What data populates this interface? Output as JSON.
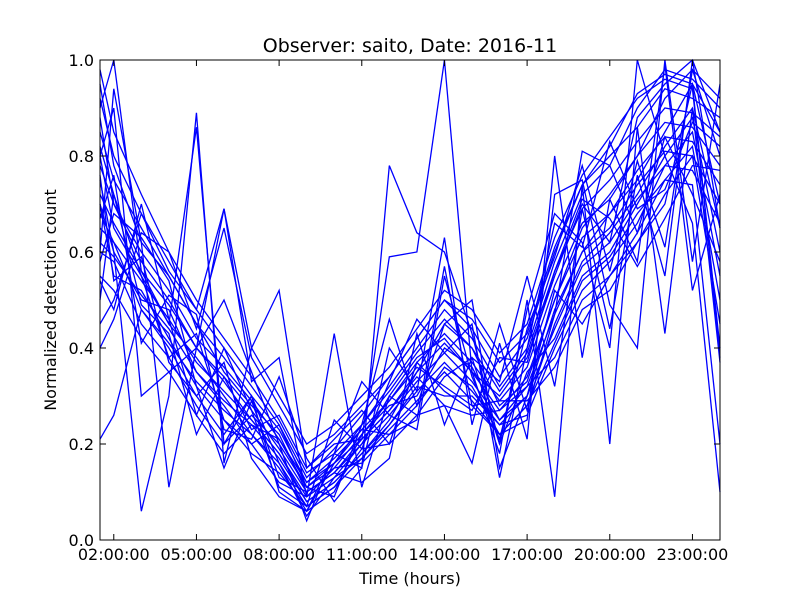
{
  "chart_data": {
    "type": "line",
    "title": "Observer: saito, Date: 2016-11",
    "xlabel": "Time (hours)",
    "ylabel": "Normalized detection count",
    "xlim": [
      1.5,
      24
    ],
    "ylim": [
      0,
      1
    ],
    "xticks": [
      {
        "value": 2,
        "label": "02:00:00"
      },
      {
        "value": 5,
        "label": "05:00:00"
      },
      {
        "value": 8,
        "label": "08:00:00"
      },
      {
        "value": 11,
        "label": "11:00:00"
      },
      {
        "value": 14,
        "label": "14:00:00"
      },
      {
        "value": 17,
        "label": "17:00:00"
      },
      {
        "value": 20,
        "label": "20:00:00"
      },
      {
        "value": 23,
        "label": "23:00:00"
      }
    ],
    "yticks": [
      {
        "value": 0,
        "label": "0.0"
      },
      {
        "value": 0.2,
        "label": "0.2"
      },
      {
        "value": 0.4,
        "label": "0.4"
      },
      {
        "value": 0.6,
        "label": "0.6"
      },
      {
        "value": 0.8,
        "label": "0.8"
      },
      {
        "value": 1.0,
        "label": "1.0"
      }
    ],
    "line_color": "#0000ff",
    "grid": false,
    "legend": "none",
    "x": [
      1.5,
      2,
      3,
      4,
      5,
      6,
      7,
      8,
      9,
      10,
      11,
      12,
      13,
      14,
      15,
      16,
      17,
      18,
      19,
      20,
      21,
      22,
      23,
      24
    ],
    "series": [
      {
        "values": [
          0.95,
          0.78,
          0.62,
          0.55,
          0.45,
          0.35,
          0.28,
          0.22,
          0.1,
          0.14,
          0.2,
          0.3,
          0.38,
          0.42,
          0.35,
          0.3,
          0.38,
          0.55,
          0.7,
          0.62,
          0.88,
          0.95,
          1.0,
          0.85
        ]
      },
      {
        "values": [
          0.88,
          0.7,
          0.58,
          0.5,
          0.4,
          0.33,
          0.25,
          0.18,
          0.08,
          0.12,
          0.18,
          0.25,
          0.35,
          0.45,
          0.4,
          0.28,
          0.33,
          0.5,
          0.65,
          0.72,
          0.8,
          0.92,
          0.98,
          0.8
        ]
      },
      {
        "values": [
          0.8,
          0.65,
          0.55,
          0.45,
          0.38,
          0.3,
          0.22,
          0.15,
          0.06,
          0.1,
          0.22,
          0.28,
          0.3,
          0.4,
          0.36,
          0.25,
          0.3,
          0.48,
          0.6,
          0.68,
          0.75,
          0.85,
          0.95,
          0.7
        ]
      },
      {
        "values": [
          0.75,
          0.6,
          0.5,
          0.48,
          0.35,
          0.28,
          0.2,
          0.12,
          0.09,
          0.15,
          0.16,
          0.22,
          0.28,
          0.36,
          0.32,
          0.22,
          0.28,
          0.45,
          0.58,
          0.64,
          0.72,
          0.82,
          0.9,
          0.65
        ]
      },
      {
        "values": [
          0.7,
          0.55,
          0.52,
          0.42,
          0.32,
          0.25,
          0.18,
          0.14,
          0.07,
          0.11,
          0.19,
          0.2,
          0.26,
          0.34,
          0.38,
          0.2,
          0.35,
          0.42,
          0.55,
          0.6,
          0.7,
          0.8,
          0.88,
          0.6
        ]
      },
      {
        "values": [
          0.65,
          0.62,
          0.48,
          0.4,
          0.3,
          0.22,
          0.3,
          0.16,
          0.05,
          0.13,
          0.17,
          0.24,
          0.32,
          0.3,
          0.3,
          0.24,
          0.26,
          0.4,
          0.52,
          0.58,
          0.66,
          0.78,
          0.85,
          0.55
        ]
      },
      {
        "values": [
          0.6,
          0.58,
          0.45,
          0.38,
          0.28,
          0.2,
          0.26,
          0.2,
          0.11,
          0.16,
          0.21,
          0.27,
          0.34,
          0.28,
          0.26,
          0.27,
          0.32,
          0.38,
          0.5,
          0.55,
          0.64,
          0.75,
          0.82,
          0.5
        ]
      },
      {
        "values": [
          0.55,
          0.52,
          0.42,
          0.35,
          0.26,
          0.18,
          0.24,
          0.21,
          0.12,
          0.17,
          0.23,
          0.29,
          0.36,
          0.32,
          0.28,
          0.29,
          0.29,
          0.36,
          0.48,
          0.52,
          0.62,
          0.72,
          0.8,
          0.45
        ]
      },
      {
        "values": [
          0.98,
          0.85,
          0.72,
          0.6,
          0.5,
          0.42,
          0.34,
          0.25,
          0.14,
          0.18,
          0.24,
          0.32,
          0.4,
          0.48,
          0.42,
          0.32,
          0.4,
          0.58,
          0.72,
          0.78,
          0.9,
          0.98,
          0.96,
          0.9
        ]
      },
      {
        "values": [
          0.92,
          0.8,
          0.68,
          0.58,
          0.48,
          0.4,
          0.32,
          0.24,
          0.13,
          0.19,
          0.26,
          0.34,
          0.42,
          0.5,
          0.44,
          0.34,
          0.42,
          0.6,
          0.74,
          0.8,
          0.86,
          0.94,
          0.92,
          0.88
        ]
      },
      {
        "values": [
          0.85,
          0.75,
          0.65,
          0.55,
          0.45,
          0.38,
          0.3,
          0.23,
          0.12,
          0.16,
          0.24,
          0.31,
          0.39,
          0.46,
          0.4,
          0.31,
          0.39,
          0.56,
          0.69,
          0.75,
          0.83,
          0.9,
          0.89,
          0.84
        ]
      },
      {
        "values": [
          0.78,
          0.7,
          0.6,
          0.52,
          0.42,
          0.36,
          0.29,
          0.21,
          0.11,
          0.15,
          0.22,
          0.29,
          0.37,
          0.43,
          0.37,
          0.29,
          0.36,
          0.53,
          0.66,
          0.71,
          0.8,
          0.87,
          0.86,
          0.78
        ]
      },
      {
        "values": [
          0.72,
          0.66,
          0.56,
          0.49,
          0.4,
          0.34,
          0.27,
          0.19,
          0.1,
          0.14,
          0.21,
          0.27,
          0.35,
          0.41,
          0.35,
          0.27,
          0.34,
          0.5,
          0.63,
          0.68,
          0.77,
          0.84,
          0.83,
          0.74
        ]
      },
      {
        "values": [
          0.68,
          0.62,
          0.54,
          0.46,
          0.37,
          0.31,
          0.25,
          0.18,
          0.09,
          0.13,
          0.2,
          0.26,
          0.33,
          0.39,
          0.33,
          0.25,
          0.32,
          0.47,
          0.6,
          0.65,
          0.74,
          0.81,
          0.8,
          0.7
        ]
      },
      {
        "values": [
          0.62,
          0.59,
          0.51,
          0.44,
          0.35,
          0.29,
          0.24,
          0.17,
          0.08,
          0.12,
          0.18,
          0.24,
          0.31,
          0.37,
          0.31,
          0.24,
          0.3,
          0.44,
          0.57,
          0.62,
          0.71,
          0.78,
          0.77,
          0.66
        ]
      },
      {
        "values": [
          0.21,
          0.26,
          0.48,
          0.41,
          0.33,
          0.27,
          0.22,
          0.16,
          0.07,
          0.11,
          0.17,
          0.23,
          0.29,
          0.35,
          0.29,
          0.22,
          0.28,
          0.41,
          0.54,
          0.59,
          0.68,
          0.75,
          0.74,
          0.2
        ]
      },
      {
        "values": [
          0.45,
          0.5,
          0.68,
          0.56,
          0.48,
          0.69,
          0.4,
          0.3,
          0.2,
          0.24,
          0.3,
          0.36,
          0.44,
          0.52,
          0.48,
          0.39,
          0.45,
          0.63,
          0.76,
          0.84,
          0.92,
          0.96,
          0.94,
          0.4
        ]
      },
      {
        "values": [
          0.4,
          0.46,
          0.64,
          0.6,
          0.44,
          0.65,
          0.38,
          0.28,
          0.18,
          0.22,
          0.28,
          0.34,
          0.42,
          0.5,
          0.46,
          0.37,
          0.43,
          0.61,
          0.74,
          0.82,
          0.93,
          0.97,
          0.95,
          0.38
        ]
      },
      {
        "values": [
          0.8,
          0.9,
          0.3,
          0.35,
          0.4,
          0.5,
          0.35,
          0.2,
          0.04,
          0.18,
          0.15,
          0.78,
          0.64,
          0.6,
          0.43,
          0.2,
          0.48,
          0.68,
          0.62,
          0.4,
          1.0,
          0.8,
          0.66,
          0.1
        ]
      },
      {
        "values": [
          0.7,
          0.6,
          0.06,
          0.3,
          0.89,
          0.16,
          0.4,
          0.52,
          0.15,
          0.2,
          0.21,
          0.59,
          0.6,
          1.0,
          0.35,
          0.18,
          0.5,
          0.09,
          0.74,
          0.2,
          0.86,
          0.43,
          0.9,
          0.37
        ]
      },
      {
        "values": [
          0.9,
          1.0,
          0.56,
          0.45,
          0.86,
          0.2,
          0.3,
          0.1,
          0.06,
          0.16,
          0.23,
          0.22,
          0.25,
          0.57,
          0.28,
          0.22,
          0.25,
          0.72,
          0.75,
          0.49,
          0.4,
          1.0,
          0.58,
          0.95
        ]
      },
      {
        "values": [
          0.6,
          0.94,
          0.62,
          0.11,
          0.4,
          0.69,
          0.33,
          0.38,
          0.09,
          0.43,
          0.11,
          0.3,
          0.26,
          0.28,
          0.16,
          0.41,
          0.21,
          0.8,
          0.38,
          0.71,
          0.58,
          0.99,
          0.52,
          0.72
        ]
      },
      {
        "values": [
          0.82,
          0.72,
          0.55,
          0.38,
          0.43,
          0.25,
          0.2,
          0.24,
          0.11,
          0.09,
          0.24,
          0.46,
          0.28,
          0.45,
          0.5,
          0.15,
          0.3,
          0.52,
          0.45,
          0.55,
          0.62,
          0.7,
          0.95,
          0.85
        ]
      },
      {
        "values": [
          0.58,
          0.68,
          0.63,
          0.54,
          0.32,
          0.15,
          0.29,
          0.13,
          0.1,
          0.14,
          0.12,
          0.17,
          0.43,
          0.24,
          0.38,
          0.33,
          0.55,
          0.32,
          0.69,
          0.44,
          0.76,
          0.55,
          1.0,
          0.65
        ]
      },
      {
        "values": [
          0.5,
          0.72,
          0.49,
          0.43,
          0.22,
          0.34,
          0.23,
          0.26,
          0.15,
          0.21,
          0.27,
          0.2,
          0.37,
          0.31,
          0.27,
          0.38,
          0.37,
          0.56,
          0.71,
          0.67,
          0.57,
          0.67,
          0.78,
          0.77
        ]
      },
      {
        "values": [
          0.76,
          0.54,
          0.59,
          0.37,
          0.3,
          0.37,
          0.17,
          0.09,
          0.06,
          0.18,
          0.33,
          0.26,
          0.23,
          0.55,
          0.34,
          0.21,
          0.44,
          0.59,
          0.78,
          0.56,
          0.79,
          0.61,
          0.98,
          0.92
        ]
      },
      {
        "values": [
          0.67,
          0.76,
          0.41,
          0.51,
          0.47,
          0.23,
          0.21,
          0.34,
          0.17,
          0.08,
          0.15,
          0.4,
          0.31,
          0.63,
          0.24,
          0.45,
          0.27,
          0.47,
          0.81,
          0.78,
          0.64,
          0.84,
          0.72,
          0.58
        ]
      },
      {
        "values": [
          0.54,
          0.48,
          0.7,
          0.46,
          0.26,
          0.4,
          0.27,
          0.11,
          0.07,
          0.25,
          0.19,
          0.33,
          0.46,
          0.39,
          0.45,
          0.13,
          0.4,
          0.66,
          0.61,
          0.83,
          0.69,
          0.73,
          0.87,
          0.82
        ]
      }
    ]
  }
}
